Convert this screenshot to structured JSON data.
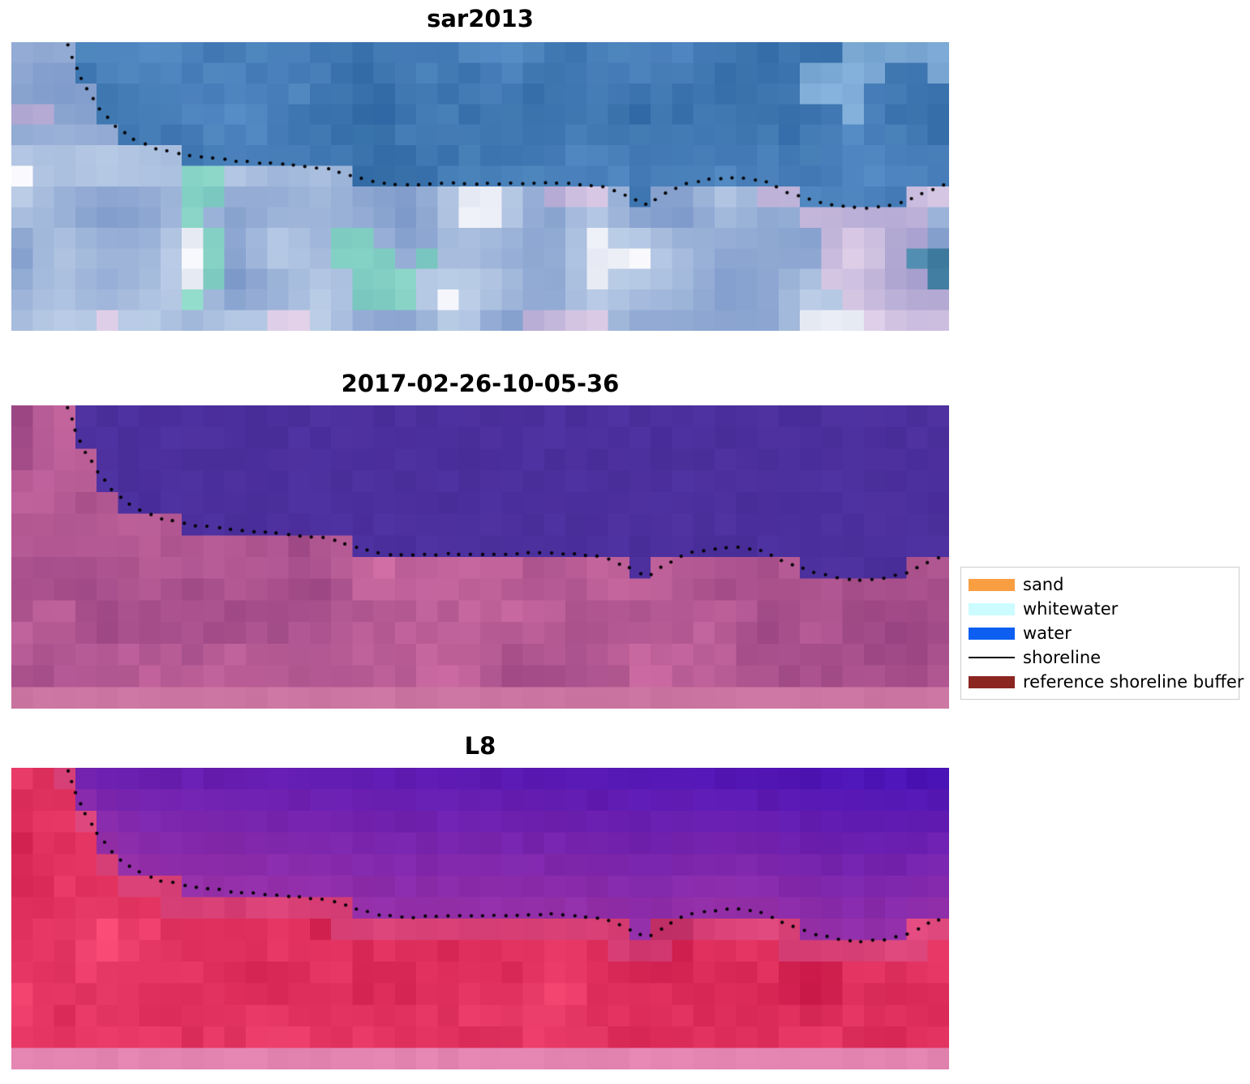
{
  "figure": {
    "background": "#ffffff"
  },
  "chart_data": {
    "type": "heatmap",
    "description": "Three stacked coastal image panels (SAR composite and two classified satellite scenes) with the detected shoreline overlaid as black dots",
    "panels": [
      {
        "id": "panel-sar2013",
        "title": "sar2013",
        "style": "sar_rgb"
      },
      {
        "id": "panel-2017",
        "title": "2017-02-26-10-05-36",
        "style": "classified_magenta"
      },
      {
        "id": "panel-l8",
        "title": "L8",
        "style": "classified_red"
      }
    ],
    "shoreline_normalized": [
      [
        0.06,
        0.01
      ],
      [
        0.068,
        0.08
      ],
      [
        0.078,
        0.15
      ],
      [
        0.092,
        0.22
      ],
      [
        0.11,
        0.29
      ],
      [
        0.132,
        0.34
      ],
      [
        0.16,
        0.375
      ],
      [
        0.195,
        0.395
      ],
      [
        0.235,
        0.41
      ],
      [
        0.275,
        0.42
      ],
      [
        0.31,
        0.43
      ],
      [
        0.34,
        0.44
      ],
      [
        0.37,
        0.47
      ],
      [
        0.395,
        0.49
      ],
      [
        0.43,
        0.495
      ],
      [
        0.465,
        0.49
      ],
      [
        0.5,
        0.49
      ],
      [
        0.535,
        0.49
      ],
      [
        0.57,
        0.485
      ],
      [
        0.6,
        0.49
      ],
      [
        0.63,
        0.5
      ],
      [
        0.655,
        0.53
      ],
      [
        0.678,
        0.565
      ],
      [
        0.7,
        0.52
      ],
      [
        0.718,
        0.49
      ],
      [
        0.745,
        0.475
      ],
      [
        0.77,
        0.468
      ],
      [
        0.8,
        0.478
      ],
      [
        0.828,
        0.52
      ],
      [
        0.855,
        0.55
      ],
      [
        0.88,
        0.568
      ],
      [
        0.905,
        0.576
      ],
      [
        0.93,
        0.57
      ],
      [
        0.955,
        0.552
      ],
      [
        0.975,
        0.52
      ],
      [
        0.996,
        0.495
      ]
    ],
    "legend": {
      "position": "center-right",
      "items": [
        {
          "label": "sand",
          "swatch": "#fa9e42",
          "kind": "patch"
        },
        {
          "label": "whitewater",
          "swatch": "#ccfcff",
          "kind": "patch"
        },
        {
          "label": "water",
          "swatch": "#0d5ff2",
          "kind": "patch"
        },
        {
          "label": "shoreline",
          "swatch": "#000000",
          "kind": "line"
        },
        {
          "label": "reference shoreline buffer",
          "swatch": "#8b2520",
          "kind": "patch"
        }
      ]
    },
    "colors": {
      "water_class_fill": "#4b2d9e",
      "shoreline_dots": "#000000"
    }
  }
}
